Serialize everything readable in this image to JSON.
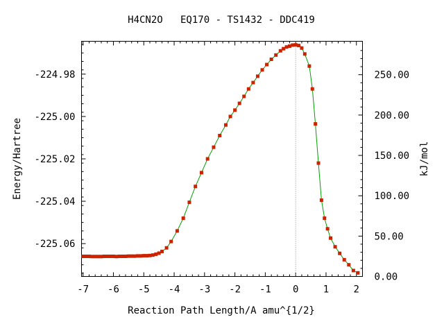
{
  "chart_data": {
    "type": "line",
    "title": "H4CN2O   EQ170 - TS1432 - DDC419",
    "xlabel": "Reaction Path Length/A amu^{1/2}",
    "ylabel": "Energy/Hartree",
    "y2label": "kJ/mol",
    "xlim": [
      -7.05,
      2.2
    ],
    "ylim": [
      -225.0755,
      -224.9645
    ],
    "x_ticks": [
      "-7",
      "-6",
      "-5",
      "-4",
      "-3",
      "-2",
      "-1",
      "0",
      "1",
      "2"
    ],
    "y_ticks": [
      "-224.98",
      "-225.00",
      "-225.02",
      "-225.04",
      "-225.06"
    ],
    "y2_ticks": [
      "0.00",
      "50.00",
      "100.00",
      "150.00",
      "200.00",
      "250.00"
    ],
    "ts_marker_x": 0,
    "grid": false,
    "line_color": "#00a000",
    "marker_color": "#cc2200",
    "series": [
      {
        "x": [
          -7.0,
          -6.9,
          -6.8,
          -6.7,
          -6.6,
          -6.5,
          -6.4,
          -6.3,
          -6.2,
          -6.1,
          -6.0,
          -5.9,
          -5.8,
          -5.7,
          -5.6,
          -5.5,
          -5.4,
          -5.3,
          -5.2,
          -5.1,
          -5.0,
          -4.9,
          -4.8,
          -4.7,
          -4.6,
          -4.5,
          -4.4,
          -4.25,
          -4.1,
          -3.9,
          -3.7,
          -3.5,
          -3.3,
          -3.1,
          -2.9,
          -2.7,
          -2.5,
          -2.3,
          -2.15,
          -2.0,
          -1.85,
          -1.7,
          -1.55,
          -1.4,
          -1.25,
          -1.1,
          -0.95,
          -0.8,
          -0.65,
          -0.5,
          -0.4,
          -0.3,
          -0.2,
          -0.1,
          0.0,
          0.1,
          0.2,
          0.3,
          0.45,
          0.55,
          0.65,
          0.75,
          0.85,
          0.95,
          1.05,
          1.15,
          1.3,
          1.45,
          1.6,
          1.75,
          1.9,
          2.05
        ],
        "y": [
          -225.066,
          -225.066,
          -225.066,
          -225.0661,
          -225.0661,
          -225.0661,
          -225.0661,
          -225.066,
          -225.066,
          -225.066,
          -225.066,
          -225.0661,
          -225.066,
          -225.066,
          -225.066,
          -225.0659,
          -225.0659,
          -225.0659,
          -225.0658,
          -225.0658,
          -225.0657,
          -225.0657,
          -225.0656,
          -225.0654,
          -225.065,
          -225.0645,
          -225.0637,
          -225.062,
          -225.059,
          -225.054,
          -225.048,
          -225.0405,
          -225.033,
          -225.0265,
          -225.02,
          -225.0145,
          -225.009,
          -225.004,
          -225.0,
          -224.997,
          -224.9938,
          -224.9905,
          -224.987,
          -224.984,
          -224.981,
          -224.978,
          -224.9755,
          -224.973,
          -224.971,
          -224.969,
          -224.968,
          -224.9672,
          -224.9668,
          -224.9663,
          -224.9662,
          -224.9665,
          -224.9677,
          -224.9705,
          -224.9762,
          -224.987,
          -225.0035,
          -225.022,
          -225.0395,
          -225.048,
          -225.053,
          -225.0574,
          -225.0615,
          -225.0646,
          -225.0676,
          -225.07,
          -225.0727,
          -225.0738
        ]
      }
    ]
  }
}
